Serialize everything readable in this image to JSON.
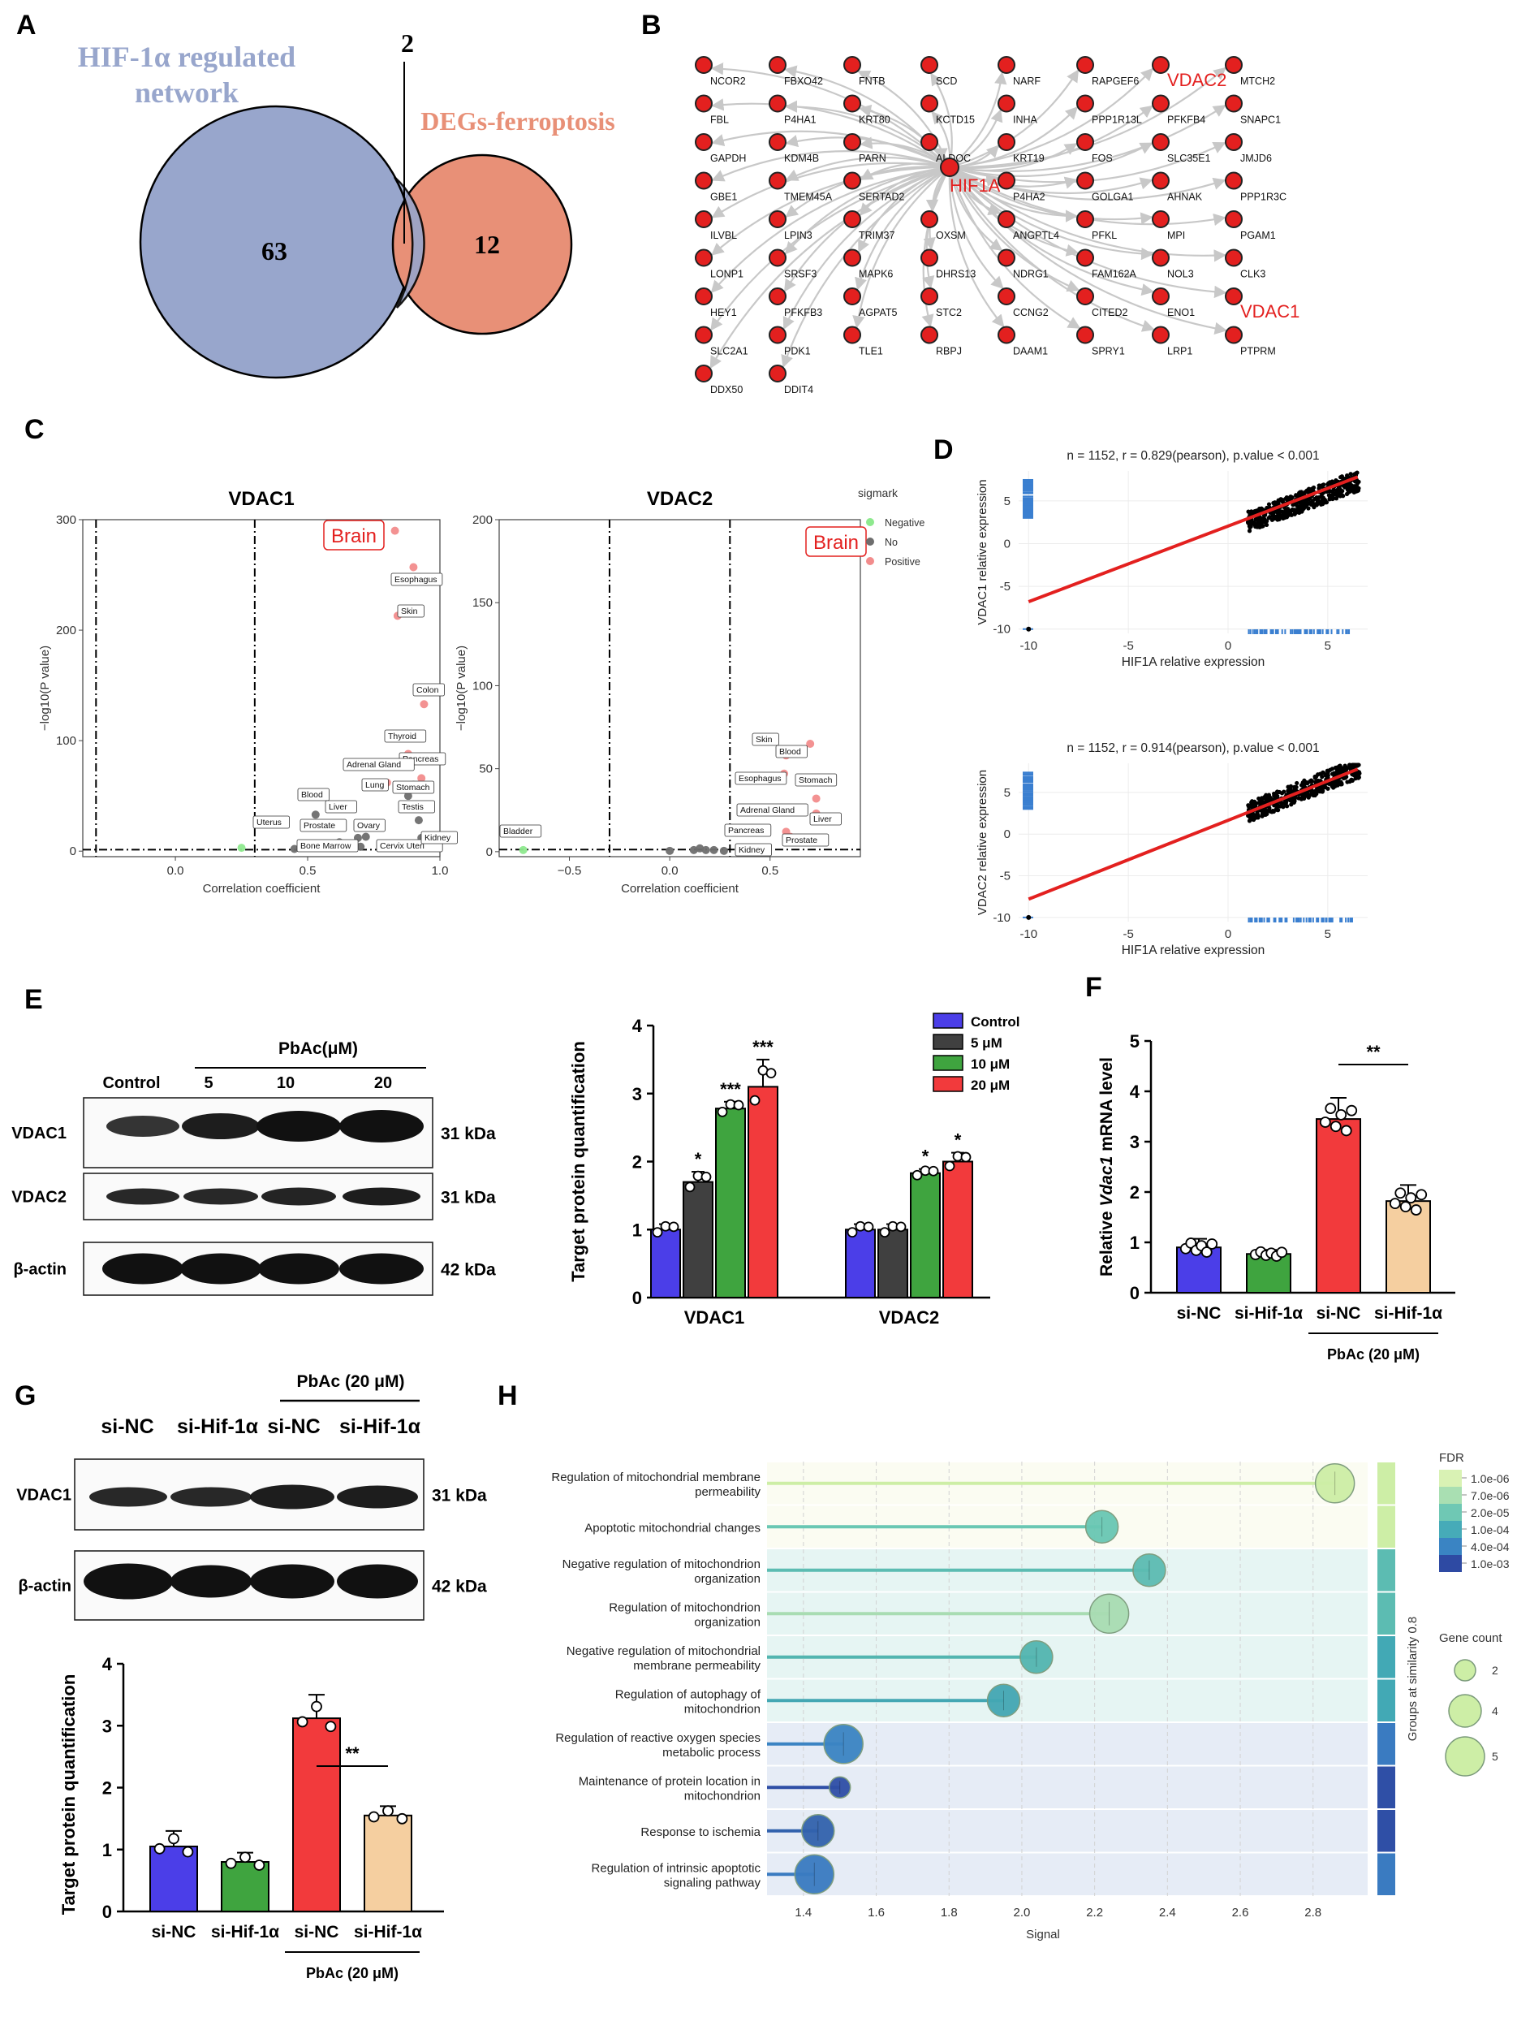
{
  "panels": {
    "A": "A",
    "B": "B",
    "C": "C",
    "D": "D",
    "E": "E",
    "F": "F",
    "G": "G",
    "H": "H"
  },
  "venn": {
    "left_label_1": "HIF-1α regulated",
    "left_label_2": "network",
    "right_label": "DEGs-ferroptosis",
    "left_only": "63",
    "overlap": "2",
    "right_only": "12",
    "left_color": "#98a6cc",
    "right_color": "#e89077"
  },
  "network": {
    "hub": "HIF1A",
    "highlight": [
      "VDAC2",
      "VDAC1",
      "HIF1A"
    ],
    "columns": [
      [
        "NCOR2",
        "FBL",
        "GAPDH",
        "GBE1",
        "ILVBL",
        "LONP1",
        "HEY1",
        "SLC2A1",
        "DDX50"
      ],
      [
        "FBXO42",
        "P4HA1",
        "KDM4B",
        "TMEM45A",
        "LPIN3",
        "SRSF3",
        "PFKFB3",
        "PDK1",
        "DDIT4"
      ],
      [
        "FNTB",
        "KRT80",
        "PARN",
        "SERTAD2",
        "TRIM37",
        "MAPK6",
        "AGPAT5",
        "TLE1"
      ],
      [
        "SCD",
        "KCTD15",
        "ALDOC",
        "",
        "OXSM",
        "DHRS13",
        "STC2",
        "RBPJ"
      ],
      [
        "NARF",
        "INHA",
        "KRT19",
        "P4HA2",
        "ANGPTL4",
        "NDRG1",
        "CCNG2",
        "DAAM1"
      ],
      [
        "RAPGEF6",
        "PPP1R13L",
        "FOS",
        "GOLGA1",
        "PFKL",
        "FAM162A",
        "CITED2",
        "SPRY1"
      ],
      [
        "VDAC2",
        "PFKFB4",
        "SLC35E1",
        "AHNAK",
        "MPI",
        "NOL3",
        "ENO1",
        "LRP1"
      ],
      [
        "MTCH2",
        "SNAPC1",
        "JMJD6",
        "PPP1R3C",
        "PGAM1",
        "CLK3",
        "VDAC1",
        "PTPRM"
      ]
    ]
  },
  "volcano": {
    "legend_title": "sigmark",
    "legend": [
      {
        "name": "Negative",
        "color": "#8ee98e"
      },
      {
        "name": "No",
        "color": "#6e6e6e"
      },
      {
        "name": "Positive",
        "color": "#f28c8c"
      }
    ],
    "xlabel": "Correlation coefficient",
    "ylabel": "−log10(P value)",
    "highlight_label": "Brain",
    "plots": [
      {
        "title": "VDAC1",
        "xlim": [
          -0.35,
          1.0
        ],
        "ylim": [
          -5,
          300
        ],
        "xticks": [
          "0.0",
          "0.5",
          "1.0"
        ],
        "xtick_vals": [
          0,
          0.5,
          1.0
        ],
        "yticks": [
          0,
          100,
          200,
          300
        ],
        "vlines": [
          -0.3,
          0.3
        ],
        "points": [
          {
            "x": 0.83,
            "y": 290,
            "c": "Positive"
          },
          {
            "x": 0.9,
            "y": 257,
            "c": "Positive"
          },
          {
            "x": 0.84,
            "y": 213,
            "c": "Positive"
          },
          {
            "x": 0.94,
            "y": 133,
            "c": "Positive"
          },
          {
            "x": 0.88,
            "y": 88,
            "c": "Positive"
          },
          {
            "x": 0.95,
            "y": 85,
            "c": "Positive"
          },
          {
            "x": 0.93,
            "y": 66,
            "c": "Positive"
          },
          {
            "x": 0.9,
            "y": 60,
            "c": "No"
          },
          {
            "x": 0.8,
            "y": 62,
            "c": "Positive"
          },
          {
            "x": 0.88,
            "y": 50,
            "c": "No"
          },
          {
            "x": 0.53,
            "y": 33,
            "c": "No"
          },
          {
            "x": 0.92,
            "y": 28,
            "c": "No"
          },
          {
            "x": 0.93,
            "y": 12,
            "c": "No"
          },
          {
            "x": 0.69,
            "y": 12,
            "c": "No"
          },
          {
            "x": 0.72,
            "y": 13,
            "c": "No"
          },
          {
            "x": 0.62,
            "y": 8,
            "c": "No"
          },
          {
            "x": 0.25,
            "y": 3,
            "c": "Negative"
          },
          {
            "x": 0.45,
            "y": 2,
            "c": "No"
          },
          {
            "x": 0.7,
            "y": 4,
            "c": "No"
          },
          {
            "x": 0.9,
            "y": 5,
            "c": "No"
          }
        ],
        "labels": [
          "Brain",
          "Esophagus",
          "Skin",
          "Colon",
          "Thyroid",
          "Pancreas",
          "Adrenal Gland",
          "Stomach",
          "Lung",
          "Blood",
          "Testis",
          "Liver",
          "Prostate",
          "Ovary",
          "Uterus",
          "Bone Marrow",
          "Cervix Uteri",
          "Kidney"
        ]
      },
      {
        "title": "VDAC2",
        "xlim": [
          -0.85,
          0.95
        ],
        "ylim": [
          -3,
          200
        ],
        "xticks": [
          "−0.5",
          "0.0",
          "0.5"
        ],
        "xtick_vals": [
          -0.5,
          0,
          0.5
        ],
        "yticks": [
          0,
          50,
          100,
          150,
          200
        ],
        "vlines": [
          -0.3,
          0.3
        ],
        "points": [
          {
            "x": 0.7,
            "y": 65,
            "c": "Positive"
          },
          {
            "x": 0.58,
            "y": 58,
            "c": "Positive"
          },
          {
            "x": 0.57,
            "y": 47,
            "c": "Positive"
          },
          {
            "x": 0.73,
            "y": 32,
            "c": "Positive"
          },
          {
            "x": 0.73,
            "y": 23,
            "c": "Positive"
          },
          {
            "x": 0.58,
            "y": 12,
            "c": "Positive"
          },
          {
            "x": 0.6,
            "y": 9,
            "c": "Positive"
          },
          {
            "x": -0.73,
            "y": 1,
            "c": "Negative"
          },
          {
            "x": 0.12,
            "y": 1,
            "c": "No"
          },
          {
            "x": 0.15,
            "y": 2,
            "c": "No"
          },
          {
            "x": 0.18,
            "y": 1,
            "c": "No"
          },
          {
            "x": 0.22,
            "y": 1,
            "c": "No"
          },
          {
            "x": 0.27,
            "y": 0.5,
            "c": "No"
          },
          {
            "x": 0.0,
            "y": 0.5,
            "c": "No"
          }
        ],
        "labels": [
          "Brain",
          "Skin",
          "Blood",
          "Esophagus",
          "Stomach",
          "Adrenal Gland",
          "Liver",
          "Pancreas",
          "Prostate",
          "Kidney",
          "Bladder"
        ]
      }
    ]
  },
  "correlation": {
    "xlabel": "HIF1A relative expression",
    "plots": [
      {
        "title": "n = 1152, r = 0.829(pearson), p.value < 0.001",
        "ylabel": "VDAC1 relative expression",
        "xlim": [
          -10.5,
          7
        ],
        "ylim": [
          -10.5,
          8.5
        ],
        "xticks": [
          -10,
          -5,
          0,
          5
        ],
        "yticks": [
          5,
          0,
          -5,
          -10
        ],
        "line": [
          {
            "x": -10,
            "y": -6.8
          },
          {
            "x": 6.5,
            "y": 7.8
          }
        ]
      },
      {
        "title": "n = 1152, r = 0.914(pearson), p.value < 0.001",
        "ylabel": "VDAC2 relative expression",
        "xlim": [
          -10.5,
          7
        ],
        "ylim": [
          -10.5,
          8.5
        ],
        "xticks": [
          -10,
          -5,
          0,
          5
        ],
        "yticks": [
          5,
          0,
          -5,
          -10
        ],
        "line": [
          {
            "x": -10,
            "y": -7.8
          },
          {
            "x": 6.5,
            "y": 7.8
          }
        ]
      }
    ]
  },
  "panelE": {
    "blot": {
      "treatment": "PbAc(μM)",
      "lanes": [
        "Control",
        "5",
        "10",
        "20"
      ],
      "rows": [
        {
          "name": "VDAC1",
          "kda": "31 kDa"
        },
        {
          "name": "VDAC2",
          "kda": "31 kDa"
        },
        {
          "name": "β-actin",
          "kda": "42 kDa"
        }
      ]
    },
    "chart_data": {
      "type": "bar",
      "ylabel": "Target protein quantification",
      "ylim": [
        0,
        4
      ],
      "yticks": [
        0,
        1,
        2,
        3,
        4
      ],
      "categories": [
        "VDAC1",
        "VDAC2"
      ],
      "series": [
        {
          "name": "Control",
          "color": "#4b3ee8",
          "values": [
            1.0,
            1.0
          ],
          "sig": [
            "",
            ""
          ]
        },
        {
          "name": "5 μM",
          "color": "#404040",
          "values": [
            1.7,
            1.0
          ],
          "sig": [
            "*",
            ""
          ]
        },
        {
          "name": "10 μM",
          "color": "#3fa43f",
          "values": [
            2.78,
            1.83
          ],
          "sig": [
            "***",
            "*"
          ]
        },
        {
          "name": "20 μM",
          "color": "#f23a3c",
          "values": [
            3.1,
            2.0
          ],
          "sig": [
            "***",
            "*"
          ]
        }
      ],
      "errors": [
        [
          0.08,
          0.08
        ],
        [
          0.15,
          0.08
        ],
        [
          0.1,
          0.06
        ],
        [
          0.4,
          0.13
        ]
      ]
    }
  },
  "panelF": {
    "chart_data": {
      "type": "bar",
      "ylabel_pre": "Relative ",
      "ylabel_italic": "Vdac1",
      "ylabel_post": " mRNA  level",
      "ylim": [
        0,
        5
      ],
      "yticks": [
        0,
        1,
        2,
        3,
        4,
        5
      ],
      "categories": [
        "si-NC",
        "si-Hif-1α",
        "si-NC",
        "si-Hif-1α"
      ],
      "values": [
        0.9,
        0.77,
        3.45,
        1.82
      ],
      "errors": [
        0.17,
        0.08,
        0.42,
        0.32
      ],
      "colors": [
        "#4b3ee8",
        "#3fa43f",
        "#f23a3c",
        "#f5cfa0"
      ],
      "group_label": "PbAc (20 μM)",
      "sig": "**"
    }
  },
  "panelG": {
    "blot": {
      "treatment": "PbAc (20 μM)",
      "lanes": [
        "si-NC",
        "si-Hif-1α",
        "si-NC",
        "si-Hif-1α"
      ],
      "rows": [
        {
          "name": "VDAC1",
          "kda": "31 kDa"
        },
        {
          "name": "β-actin",
          "kda": "42 kDa"
        }
      ]
    },
    "chart_data": {
      "type": "bar",
      "ylabel": "Target protein quantification",
      "ylim": [
        0,
        4
      ],
      "yticks": [
        0,
        1,
        2,
        3,
        4
      ],
      "categories": [
        "si-NC",
        "si-Hif-1α",
        "si-NC",
        "si-Hif-1α"
      ],
      "values": [
        1.05,
        0.8,
        3.12,
        1.55
      ],
      "errors": [
        0.25,
        0.15,
        0.38,
        0.15
      ],
      "colors": [
        "#4b3ee8",
        "#3fa43f",
        "#f23a3c",
        "#f5cfa0"
      ],
      "group_label": "PbAc (20 μM)",
      "sig": "**"
    }
  },
  "panelH": {
    "chart_data": {
      "type": "scatter",
      "xlabel": "Signal",
      "xlim": [
        1.3,
        2.95
      ],
      "xticks": [
        1.4,
        1.6,
        1.8,
        2.0,
        2.2,
        2.4,
        2.6,
        2.8
      ],
      "group_axis_label": "Groups at similarity 0.8",
      "terms": [
        {
          "name1": "Regulation of mitochondrial membrane",
          "name2": "permeability",
          "signal": 2.86,
          "fdr_color": "#cdeea6",
          "size": 5,
          "band": "#fbfcf2",
          "group": "#cdeea6"
        },
        {
          "name1": "Apoptotic mitochondrial changes",
          "name2": "",
          "signal": 2.22,
          "fdr_color": "#69c7b3",
          "size": 4,
          "band": "#fbfcf2",
          "group": "#cdeea6"
        },
        {
          "name1": "Negative regulation of mitochondrion",
          "name2": "organization",
          "signal": 2.35,
          "fdr_color": "#5cbcb2",
          "size": 4,
          "band": "#e6f5f3",
          "group": "#5cbcb2"
        },
        {
          "name1": "Regulation of mitochondrion",
          "name2": "organization",
          "signal": 2.24,
          "fdr_color": "#a8dcb2",
          "size": 5,
          "band": "#e6f5f3",
          "group": "#5cbcb2"
        },
        {
          "name1": "Negative regulation of mitochondrial",
          "name2": "membrane permeability",
          "signal": 2.04,
          "fdr_color": "#53b5b0",
          "size": 4,
          "band": "#e6f5f3",
          "group": "#42a9b5"
        },
        {
          "name1": "Regulation of autophagy of",
          "name2": "mitochondrion",
          "signal": 1.95,
          "fdr_color": "#43a7b3",
          "size": 4,
          "band": "#e6f5f3",
          "group": "#42a9b5"
        },
        {
          "name1": "Regulation of reactive oxygen species",
          "name2": "metabolic process",
          "signal": 1.51,
          "fdr_color": "#3b84c3",
          "size": 5,
          "band": "#e6ecf6",
          "group": "#3a7bc1"
        },
        {
          "name1": "Maintenance of protein location in",
          "name2": "mitochondrion",
          "signal": 1.5,
          "fdr_color": "#2f4fa6",
          "size": 2,
          "band": "#e6ecf6",
          "group": "#2f4fa6"
        },
        {
          "name1": "Response to ischemia",
          "name2": "",
          "signal": 1.44,
          "fdr_color": "#3262ad",
          "size": 4,
          "band": "#e6ecf6",
          "group": "#2f4fa6"
        },
        {
          "name1": "Regulation of intrinsic apoptotic",
          "name2": "signaling pathway",
          "signal": 1.43,
          "fdr_color": "#3a7bc1",
          "size": 5,
          "band": "#e6ecf6",
          "group": "#3a7bc1"
        }
      ],
      "fdr_legend": {
        "title": "FDR",
        "labels": [
          "1.0e-06",
          "7.0e-06",
          "2.0e-05",
          "1.0e-04",
          "4.0e-04",
          "1.0e-03"
        ],
        "colors": [
          "#d9f2b4",
          "#a9dfb2",
          "#6fc8b4",
          "#46abb8",
          "#3a84c3",
          "#2e4aa3"
        ]
      },
      "size_legend": {
        "title": "Gene count",
        "labels": [
          "2",
          "4",
          "5"
        ],
        "values": [
          2,
          4,
          5
        ]
      }
    }
  }
}
